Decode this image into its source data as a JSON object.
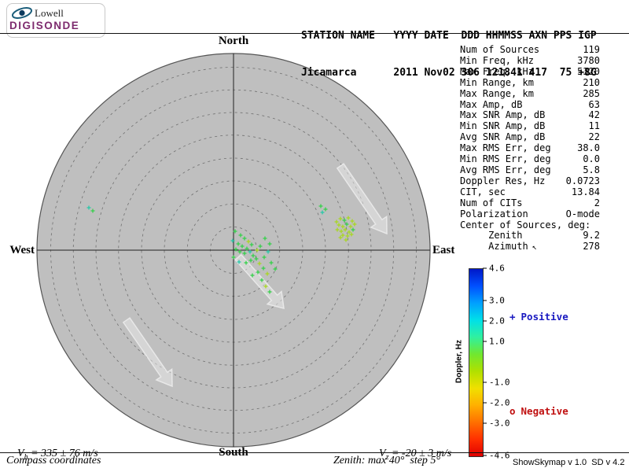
{
  "logo": {
    "lowell": "Lowell",
    "digisonde": "DIGISONDE",
    "digisonde_color": "#7d2b6e"
  },
  "header": {
    "labels": "STATION NAME   YYYY DATE  DDD HHMMSS AXN PPS IGP",
    "values": "Jicamarca      2011 Nov02 306 121841 417  75 +8G"
  },
  "compass": {
    "north": "North",
    "south": "South",
    "west": "West",
    "east": "East"
  },
  "stats": [
    {
      "label": "Num of Sources",
      "value": "119"
    },
    {
      "label": "Min Freq, kHz",
      "value": "3780"
    },
    {
      "label": "Max Freq, kHz",
      "value": "5320"
    },
    {
      "label": "Min Range, km",
      "value": "210"
    },
    {
      "label": "Max Range, km",
      "value": "285"
    },
    {
      "label": "Max Amp, dB",
      "value": "63"
    },
    {
      "label": "Max SNR Amp, dB",
      "value": "42"
    },
    {
      "label": "Min SNR Amp, dB",
      "value": "11"
    },
    {
      "label": "Avg SNR Amp, dB",
      "value": "22"
    },
    {
      "label": "Max RMS Err, deg",
      "value": "38.0"
    },
    {
      "label": "Min RMS Err, deg",
      "value": "0.0"
    },
    {
      "label": "Avg RMS Err, deg",
      "value": "5.8"
    },
    {
      "label": "Doppler Res, Hz",
      "value": "0.0723"
    },
    {
      "label": "CIT, sec",
      "value": "13.84"
    },
    {
      "label": "Num of CITs",
      "value": "2"
    },
    {
      "label": "Polarization",
      "value": "O-mode"
    },
    {
      "label": "Center of Sources, deg:",
      "value": ""
    },
    {
      "label": "     Zenith",
      "value": "9.2"
    },
    {
      "label": "     Azimuth",
      "icon": "↖",
      "value": "278"
    }
  ],
  "colorbar": {
    "label": "Doppler, Hz",
    "max": 4.6,
    "min": -4.6,
    "ticks": [
      4.6,
      3.0,
      2.0,
      1.0,
      -1.0,
      -2.0,
      -3.0,
      -4.6
    ],
    "gradient": [
      "#0018c8",
      "#0050ff",
      "#00a0ff",
      "#00e0e8",
      "#30f0a0",
      "#70e830",
      "#b0e000",
      "#f0e000",
      "#ffb000",
      "#ff7000",
      "#ff3000",
      "#e00000"
    ]
  },
  "legend": {
    "positive": {
      "marker": "+",
      "label": "Positive",
      "color": "#1818c0"
    },
    "negative": {
      "marker": "o",
      "label": "Negative",
      "color": "#c01010"
    }
  },
  "footer": {
    "vh": {
      "letter": "V",
      "sub": "h",
      "rest": " = 335 ± 76 m/s"
    },
    "coords": "Compass coordinates",
    "vz": {
      "letter": "V",
      "sub": "z",
      "rest": " = -20 ± 3 m/s"
    },
    "zenith_info": "Zenith: max 40°  step 5°",
    "version": "ShowSkymap v 1.0  SD v 4.2"
  },
  "skymap": {
    "colors": {
      "disk": "#bfbfbf",
      "ring": "#707070",
      "axis": "#222222",
      "arrow_fill": "rgba(236,236,236,0.5)",
      "arrow_stroke": "#e8e8e8"
    },
    "palette": {
      "g": "#35d04a",
      "l": "#a8d820",
      "c": "#28c8a8"
    },
    "arrows": [
      [
        433,
        211,
        492,
        297
      ],
      [
        303,
        327,
        361,
        392
      ],
      [
        161,
        407,
        219,
        491
      ]
    ],
    "points": [
      [
        113,
        264,
        "c"
      ],
      [
        118,
        268,
        "g"
      ],
      [
        299,
        294,
        "g"
      ],
      [
        306,
        299,
        "g"
      ],
      [
        296,
        306,
        "c"
      ],
      [
        303,
        310,
        "g"
      ],
      [
        311,
        303,
        "g"
      ],
      [
        316,
        307,
        "l"
      ],
      [
        308,
        313,
        "g"
      ],
      [
        314,
        316,
        "g"
      ],
      [
        320,
        311,
        "g"
      ],
      [
        318,
        320,
        "c"
      ],
      [
        311,
        322,
        "g"
      ],
      [
        305,
        320,
        "g"
      ],
      [
        300,
        317,
        "g"
      ],
      [
        322,
        325,
        "g"
      ],
      [
        327,
        318,
        "l"
      ],
      [
        331,
        313,
        "g"
      ],
      [
        326,
        329,
        "g"
      ],
      [
        319,
        331,
        "g"
      ],
      [
        313,
        334,
        "g"
      ],
      [
        330,
        335,
        "l"
      ],
      [
        336,
        327,
        "g"
      ],
      [
        341,
        320,
        "c"
      ],
      [
        335,
        341,
        "g"
      ],
      [
        328,
        346,
        "g"
      ],
      [
        321,
        350,
        "g"
      ],
      [
        340,
        348,
        "l"
      ],
      [
        345,
        334,
        "g"
      ],
      [
        297,
        327,
        "g"
      ],
      [
        304,
        333,
        "c"
      ],
      [
        343,
        310,
        "g"
      ],
      [
        337,
        303,
        "g"
      ],
      [
        333,
        356,
        "g"
      ],
      [
        338,
        364,
        "l"
      ],
      [
        343,
        371,
        "g"
      ],
      [
        350,
        342,
        "g"
      ],
      [
        408,
        262,
        "g"
      ],
      [
        414,
        266,
        "g"
      ],
      [
        410,
        270,
        "c"
      ],
      [
        428,
        282,
        "l"
      ],
      [
        433,
        278,
        "l"
      ],
      [
        438,
        280,
        "g"
      ],
      [
        443,
        277,
        "l"
      ],
      [
        448,
        281,
        "l"
      ],
      [
        431,
        286,
        "l"
      ],
      [
        436,
        288,
        "l"
      ],
      [
        441,
        285,
        "g"
      ],
      [
        446,
        288,
        "l"
      ],
      [
        451,
        285,
        "l"
      ],
      [
        429,
        292,
        "l"
      ],
      [
        434,
        294,
        "l"
      ],
      [
        439,
        292,
        "l"
      ],
      [
        444,
        295,
        "l"
      ],
      [
        449,
        292,
        "g"
      ],
      [
        436,
        299,
        "l"
      ],
      [
        442,
        300,
        "l"
      ],
      [
        447,
        298,
        "l"
      ],
      [
        433,
        302,
        "l"
      ],
      [
        440,
        305,
        "l"
      ]
    ]
  }
}
